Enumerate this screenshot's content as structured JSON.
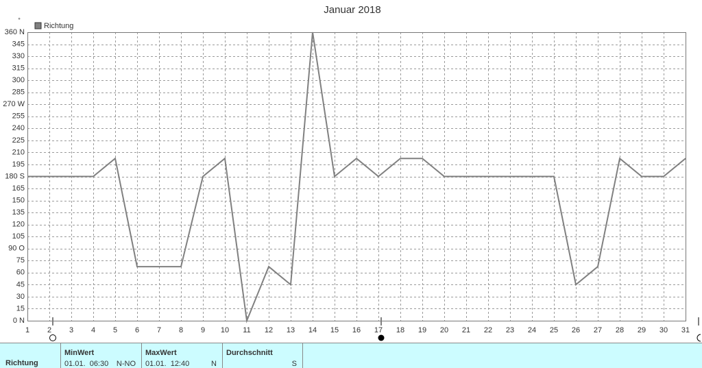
{
  "chart_data": {
    "type": "line",
    "title": "Januar 2018",
    "unit_label": "°",
    "x": [
      1,
      2,
      3,
      4,
      5,
      6,
      7,
      8,
      9,
      10,
      11,
      12,
      13,
      14,
      15,
      16,
      17,
      18,
      19,
      20,
      21,
      22,
      23,
      24,
      25,
      26,
      27,
      28,
      29,
      30,
      31
    ],
    "series": [
      {
        "name": "Richtung",
        "color": "#808080",
        "values": [
          180,
          180,
          180,
          180,
          202.5,
          67.5,
          67.5,
          67.5,
          180,
          202.5,
          0,
          67.5,
          45,
          360,
          180,
          202.5,
          180,
          202.5,
          202.5,
          180,
          180,
          180,
          180,
          180,
          180,
          45,
          67.5,
          202.5,
          180,
          180,
          202.5
        ]
      }
    ],
    "xlim": [
      1,
      31
    ],
    "xticks": [
      1,
      2,
      3,
      4,
      5,
      6,
      7,
      8,
      9,
      10,
      11,
      12,
      13,
      14,
      15,
      16,
      17,
      18,
      19,
      20,
      21,
      22,
      23,
      24,
      25,
      26,
      27,
      28,
      29,
      30,
      31
    ],
    "ylim": [
      0,
      360
    ],
    "yticks": [
      {
        "value": 0,
        "label": "0 N"
      },
      15,
      30,
      45,
      60,
      75,
      {
        "value": 90,
        "label": "90 O"
      },
      105,
      120,
      135,
      150,
      165,
      {
        "value": 180,
        "label": "180 S"
      },
      195,
      210,
      225,
      240,
      255,
      {
        "value": 270,
        "label": "270 W"
      },
      285,
      300,
      315,
      330,
      345,
      {
        "value": 360,
        "label": "360 N"
      }
    ],
    "grid": true,
    "legend": "top-left"
  },
  "table": {
    "row_label": "Richtung",
    "columns": [
      {
        "header": "MinWert",
        "time": "01.01.  06:30",
        "value": "N-NO"
      },
      {
        "header": "MaxWert",
        "time": "01.01.  12:40",
        "value": "N"
      },
      {
        "header": "Durchschnitt",
        "time": "",
        "value": "S"
      }
    ]
  }
}
